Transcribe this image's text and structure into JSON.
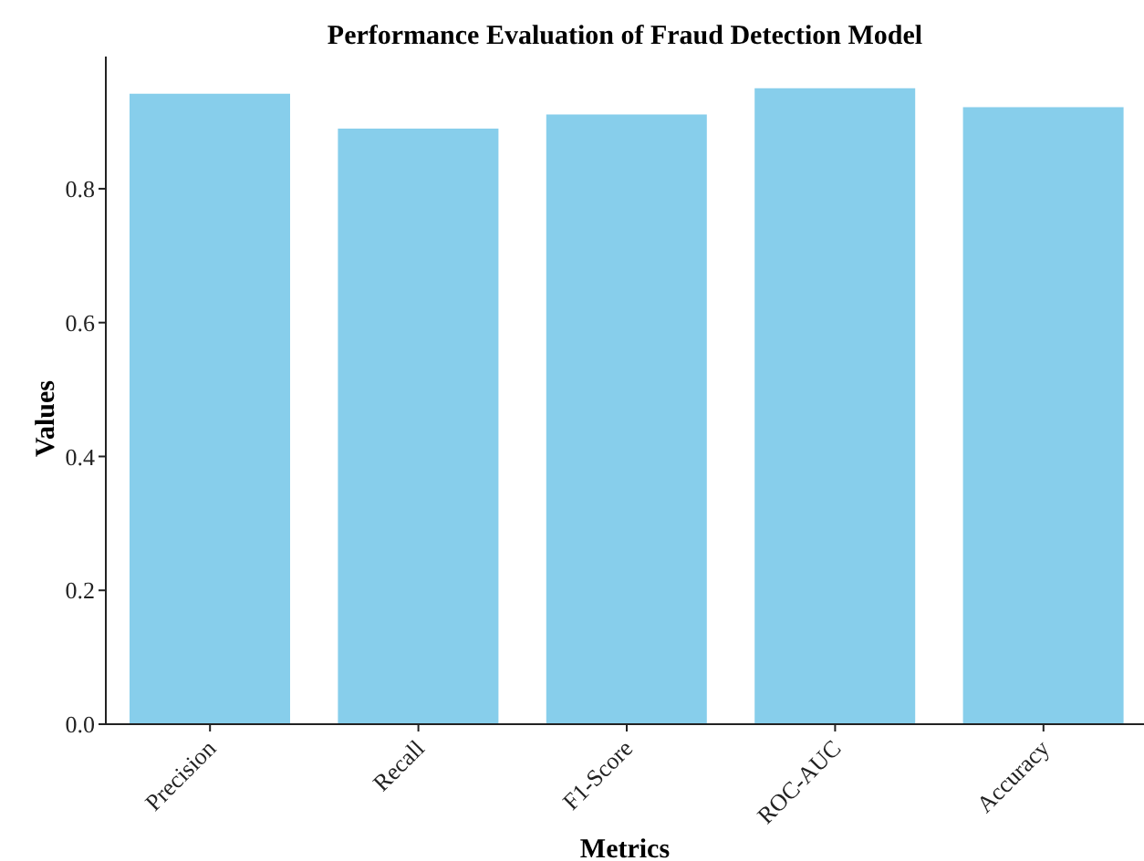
{
  "chart_data": {
    "type": "bar",
    "title": "Performance Evaluation of Fraud Detection Model",
    "xlabel": "Metrics",
    "ylabel": "Values",
    "categories": [
      "Precision",
      "Recall",
      "F1-Score",
      "ROC-AUC",
      "Accuracy"
    ],
    "values": [
      0.942,
      0.89,
      0.911,
      0.95,
      0.922
    ],
    "color": "#87ceeb",
    "ylim": [
      0,
      0.9975
    ],
    "yticks": [
      {
        "value": 0,
        "label": "0.0"
      },
      {
        "value": 0.2,
        "label": "0.2"
      },
      {
        "value": 0.4,
        "label": "0.4"
      },
      {
        "value": 0.6,
        "label": "0.6"
      },
      {
        "value": 0.8,
        "label": "0.8"
      }
    ],
    "grid": false,
    "legend": false
  }
}
